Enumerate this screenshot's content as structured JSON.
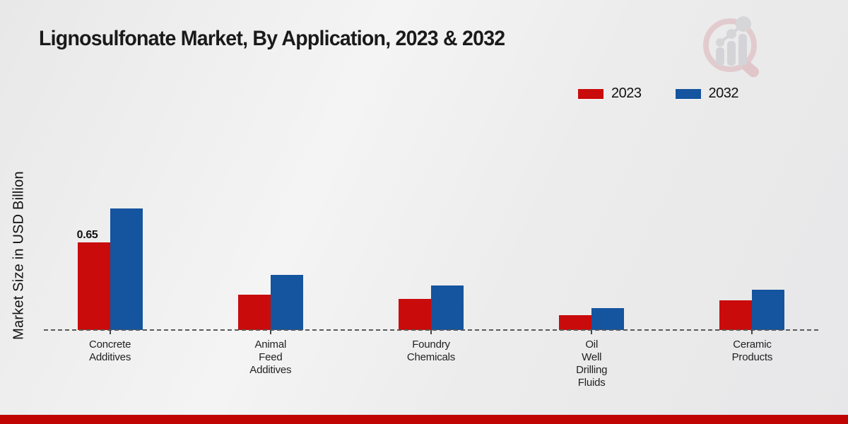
{
  "title": "Lignosulfonate Market, By Application, 2023 & 2032",
  "ylabel": "Market Size in USD Billion",
  "legend": [
    {
      "label": "2023",
      "color": "#c90b0b"
    },
    {
      "label": "2032",
      "color": "#15549e"
    }
  ],
  "footer_color": "#c00303",
  "logo": {
    "name": "magnifier-bar-chart-logo"
  },
  "chart_data": {
    "type": "bar",
    "title": "Lignosulfonate Market, By Application, 2023 & 2032",
    "xlabel": "",
    "ylabel": "Market Size in USD Billion",
    "ylim": [
      0,
      0.95
    ],
    "grid": false,
    "baseline_style": "dashed",
    "legend_position": "top-right",
    "categories": [
      "Concrete Additives",
      "Animal Feed Additives",
      "Foundry Chemicals",
      "Oil Well Drilling Fluids",
      "Ceramic Products"
    ],
    "category_lines": [
      [
        "Concrete",
        "Additives"
      ],
      [
        "Animal",
        "Feed",
        "Additives"
      ],
      [
        "Foundry",
        "Chemicals"
      ],
      [
        "Oil",
        "Well",
        "Drilling",
        "Fluids"
      ],
      [
        "Ceramic",
        "Products"
      ]
    ],
    "series": [
      {
        "name": "2023",
        "color": "#c90b0b",
        "values": [
          0.65,
          0.26,
          0.23,
          0.11,
          0.22
        ]
      },
      {
        "name": "2032",
        "color": "#15549e",
        "values": [
          0.9,
          0.41,
          0.33,
          0.16,
          0.3
        ]
      }
    ],
    "data_labels": [
      {
        "series": "2023",
        "category": "Concrete Additives",
        "text": "0.65"
      }
    ]
  }
}
